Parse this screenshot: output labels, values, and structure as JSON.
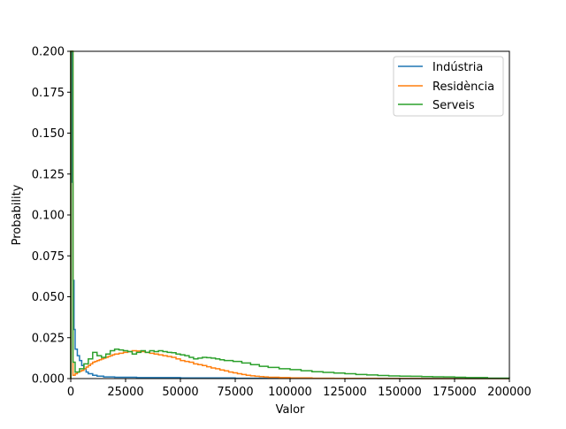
{
  "chart_data": {
    "type": "line",
    "title": "",
    "xlabel": "Valor",
    "ylabel": "Probability",
    "xlim": [
      0,
      200000
    ],
    "ylim": [
      0,
      0.2
    ],
    "x_ticks": [
      0,
      25000,
      50000,
      75000,
      100000,
      125000,
      150000,
      175000,
      200000
    ],
    "x_tick_labels": [
      "0",
      "25000",
      "50000",
      "75000",
      "100000",
      "125000",
      "150000",
      "175000",
      "200000"
    ],
    "y_ticks": [
      0,
      0.025,
      0.05,
      0.075,
      0.1,
      0.125,
      0.15,
      0.175,
      0.2
    ],
    "y_tick_labels": [
      "0.000",
      "0.025",
      "0.050",
      "0.075",
      "0.100",
      "0.125",
      "0.150",
      "0.175",
      "0.200"
    ],
    "grid": false,
    "legend_position": "top-right",
    "drawstyle": "steps-post",
    "series": [
      {
        "name": "Indústria",
        "color": "#1f77b4",
        "x": [
          0,
          500,
          1000,
          1500,
          2000,
          3000,
          4000,
          5000,
          6000,
          7000,
          8000,
          10000,
          12000,
          15000,
          20000,
          30000,
          50000,
          75000,
          100000,
          125000,
          150000,
          175000,
          200000
        ],
        "y": [
          0.2,
          0.12,
          0.06,
          0.03,
          0.018,
          0.014,
          0.011,
          0.008,
          0.006,
          0.004,
          0.003,
          0.002,
          0.0015,
          0.001,
          0.0008,
          0.0006,
          0.0004,
          0.0002,
          0.0001,
          5e-05,
          0.0,
          0.0,
          0.0
        ]
      },
      {
        "name": "Residència",
        "color": "#ff7f0e",
        "x": [
          0,
          1000,
          2000,
          3000,
          4000,
          5000,
          6000,
          7000,
          8000,
          9000,
          10000,
          11000,
          12000,
          13000,
          14000,
          15000,
          16000,
          17000,
          18000,
          19000,
          20000,
          22000,
          24000,
          26000,
          28000,
          30000,
          32000,
          34000,
          36000,
          38000,
          40000,
          42000,
          44000,
          46000,
          48000,
          50000,
          52000,
          54000,
          56000,
          58000,
          60000,
          62000,
          64000,
          66000,
          68000,
          70000,
          72000,
          74000,
          76000,
          78000,
          80000,
          82000,
          84000,
          86000,
          88000,
          90000,
          95000,
          100000,
          110000,
          120000,
          140000,
          160000,
          200000
        ],
        "y": [
          0.2,
          0.002,
          0.003,
          0.004,
          0.0045,
          0.005,
          0.006,
          0.007,
          0.008,
          0.009,
          0.01,
          0.0105,
          0.011,
          0.0115,
          0.012,
          0.0125,
          0.013,
          0.0135,
          0.014,
          0.0145,
          0.015,
          0.0155,
          0.016,
          0.0165,
          0.017,
          0.0168,
          0.0165,
          0.016,
          0.0155,
          0.015,
          0.0145,
          0.014,
          0.0135,
          0.013,
          0.012,
          0.011,
          0.0105,
          0.01,
          0.009,
          0.0085,
          0.008,
          0.0072,
          0.0065,
          0.006,
          0.0053,
          0.0047,
          0.004,
          0.0035,
          0.003,
          0.0025,
          0.002,
          0.0017,
          0.0014,
          0.0012,
          0.001,
          0.0008,
          0.0006,
          0.0004,
          0.0002,
          0.0001,
          5e-05,
          0.0,
          0.0
        ]
      },
      {
        "name": "Serveis",
        "color": "#2ca02c",
        "x": [
          0,
          1000,
          2000,
          4000,
          6000,
          8000,
          10000,
          12000,
          14000,
          16000,
          18000,
          20000,
          22000,
          24000,
          26000,
          28000,
          30000,
          32000,
          34000,
          36000,
          38000,
          40000,
          42000,
          44000,
          46000,
          48000,
          50000,
          52000,
          54000,
          56000,
          58000,
          60000,
          62000,
          64000,
          66000,
          68000,
          70000,
          74000,
          78000,
          82000,
          86000,
          90000,
          95000,
          100000,
          105000,
          110000,
          115000,
          120000,
          125000,
          130000,
          135000,
          140000,
          145000,
          150000,
          155000,
          160000,
          165000,
          170000,
          175000,
          180000,
          190000,
          200000
        ],
        "y": [
          0.2,
          0.01,
          0.004,
          0.006,
          0.009,
          0.012,
          0.016,
          0.014,
          0.013,
          0.015,
          0.017,
          0.018,
          0.0175,
          0.017,
          0.0165,
          0.015,
          0.016,
          0.017,
          0.016,
          0.017,
          0.0165,
          0.017,
          0.0165,
          0.016,
          0.0158,
          0.015,
          0.0145,
          0.014,
          0.013,
          0.012,
          0.0125,
          0.013,
          0.0128,
          0.0125,
          0.012,
          0.0115,
          0.011,
          0.0105,
          0.0095,
          0.0085,
          0.0075,
          0.0068,
          0.006,
          0.0055,
          0.0048,
          0.0042,
          0.0038,
          0.0034,
          0.003,
          0.0025,
          0.0022,
          0.0019,
          0.0016,
          0.0015,
          0.0014,
          0.0012,
          0.0011,
          0.001,
          0.0008,
          0.0006,
          0.0003,
          0.0001
        ]
      }
    ]
  }
}
